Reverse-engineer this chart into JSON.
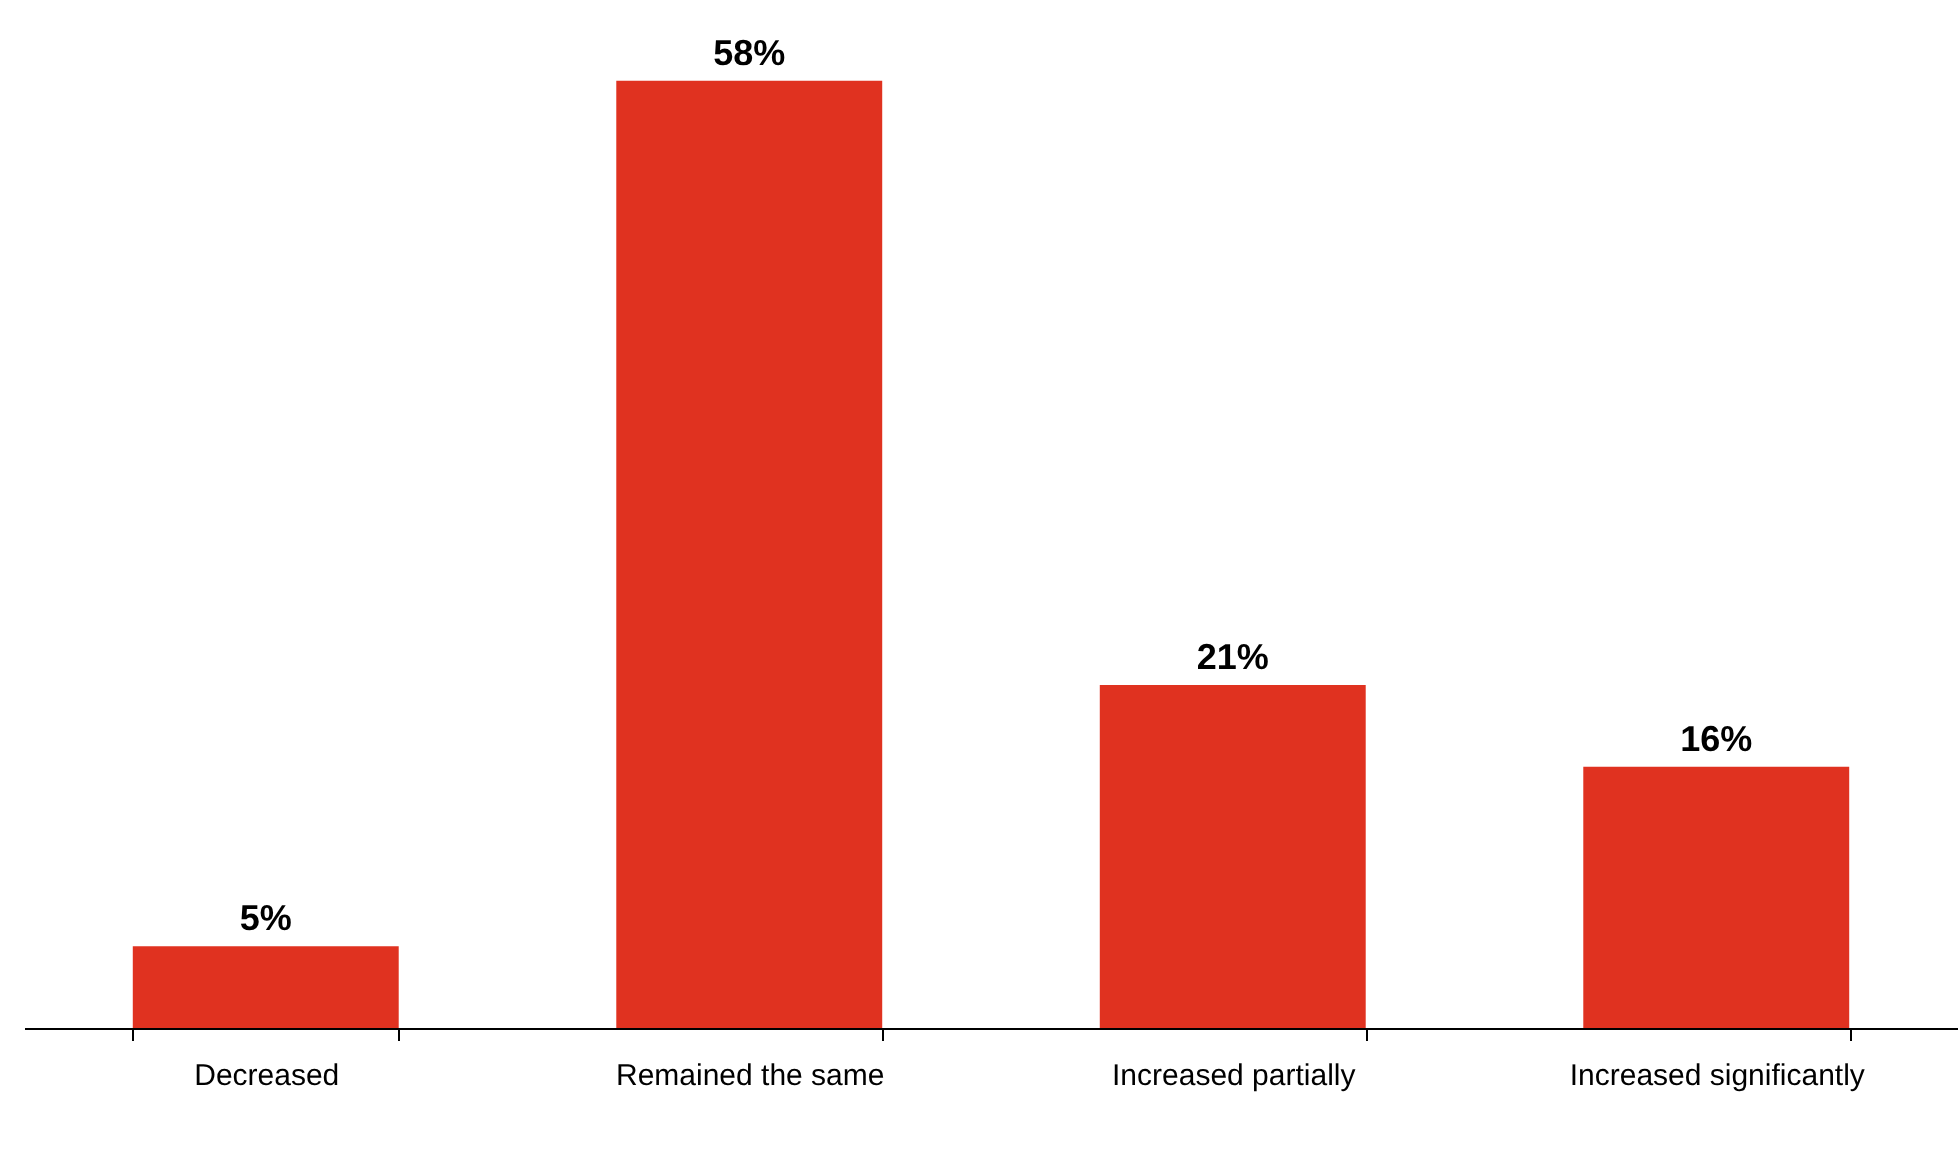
{
  "chart_data": {
    "type": "bar",
    "categories": [
      "Decreased",
      "Remained the same",
      "Increased partially",
      "Increased significantly"
    ],
    "values": [
      5,
      58,
      21,
      16
    ],
    "value_labels": [
      "5%",
      "58%",
      "21%",
      "16%"
    ],
    "color": "#e03220"
  }
}
